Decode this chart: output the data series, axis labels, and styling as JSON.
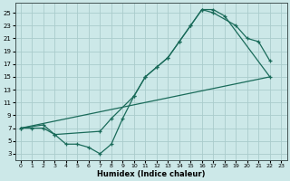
{
  "xlabel": "Humidex (Indice chaleur)",
  "bg_color": "#cce8e8",
  "grid_color": "#aacccc",
  "line_color": "#1a6b5a",
  "xlim": [
    -0.5,
    23.5
  ],
  "ylim": [
    2,
    26.5
  ],
  "xticks": [
    0,
    1,
    2,
    3,
    4,
    5,
    6,
    7,
    8,
    9,
    10,
    11,
    12,
    13,
    14,
    15,
    16,
    17,
    18,
    19,
    20,
    21,
    22,
    23
  ],
  "yticks": [
    3,
    5,
    7,
    9,
    11,
    13,
    15,
    17,
    19,
    21,
    23,
    25
  ],
  "line1_x": [
    0,
    1,
    2,
    3,
    4,
    5,
    6,
    7,
    8,
    9,
    10,
    11,
    12,
    13,
    14,
    15,
    16,
    17,
    18,
    22
  ],
  "line1_y": [
    7,
    7,
    7,
    6,
    4.5,
    4.5,
    4,
    3,
    4.5,
    8.5,
    12,
    15,
    16.5,
    18,
    20.5,
    23,
    25.5,
    25.5,
    24.5,
    15
  ],
  "line2_x": [
    0,
    2,
    3,
    7,
    8,
    10,
    11,
    12,
    13,
    14,
    15,
    16,
    17,
    19,
    20,
    21,
    22
  ],
  "line2_y": [
    7,
    7.5,
    6,
    6.5,
    8.5,
    12,
    15,
    16.5,
    18,
    20.5,
    23,
    25.5,
    25,
    23,
    21,
    20.5,
    17.5
  ],
  "line3_x": [
    0,
    22
  ],
  "line3_y": [
    7,
    15
  ]
}
